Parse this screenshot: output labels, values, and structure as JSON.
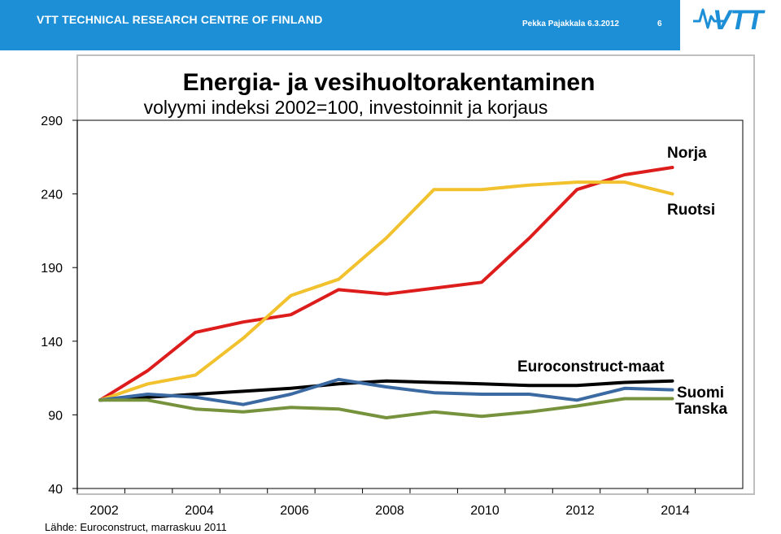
{
  "header": {
    "org": "VTT TECHNICAL RESEARCH CENTRE OF FINLAND",
    "author_date": "Pekka Pajakkala 6.3.2012",
    "page_number": "6",
    "logo_text": "VTT",
    "brand_color": "#1c8fd6"
  },
  "chart_data": {
    "type": "line",
    "title": "Energia- ja vesihuoltorakentaminen",
    "subtitle": "volyymi indeksi 2002=100, investoinnit ja korjaus",
    "source": "Lähde: Euroconstruct, marraskuu 2011",
    "x": [
      2002,
      2003,
      2004,
      2005,
      2006,
      2007,
      2008,
      2009,
      2010,
      2011,
      2012,
      2013,
      2014
    ],
    "x_tick_labels": [
      "2002",
      "2004",
      "2006",
      "2008",
      "2010",
      "2012",
      "2014"
    ],
    "y_tick_labels": [
      "40",
      "90",
      "140",
      "190",
      "240",
      "290"
    ],
    "ylim": [
      40,
      290
    ],
    "grid": false,
    "series": [
      {
        "name": "Norja",
        "color": "#dd1c1c",
        "values": [
          100,
          120,
          146,
          153,
          158,
          175,
          172,
          176,
          180,
          210,
          243,
          253,
          258
        ]
      },
      {
        "name": "Ruotsi",
        "color": "#f2c12e",
        "values": [
          100,
          111,
          117,
          142,
          171,
          182,
          210,
          243,
          243,
          246,
          248,
          248,
          240
        ]
      },
      {
        "name": "Euroconstruct-maat",
        "color": "#000000",
        "values": [
          100,
          102,
          104,
          106,
          108,
          111,
          113,
          112,
          111,
          110,
          110,
          112,
          113
        ]
      },
      {
        "name": "Suomi",
        "color": "#3b6aa3",
        "values": [
          100,
          104,
          102,
          97,
          104,
          114,
          109,
          105,
          104,
          104,
          100,
          108,
          107
        ]
      },
      {
        "name": "Tanska",
        "color": "#76923c",
        "values": [
          100,
          100,
          94,
          92,
          95,
          94,
          88,
          92,
          89,
          92,
          96,
          101,
          101
        ]
      }
    ],
    "labels": {
      "norja": "Norja",
      "ruotsi": "Ruotsi",
      "euro": "Euroconstruct-maat",
      "suomi": "Suomi",
      "tanska": "Tanska"
    }
  }
}
